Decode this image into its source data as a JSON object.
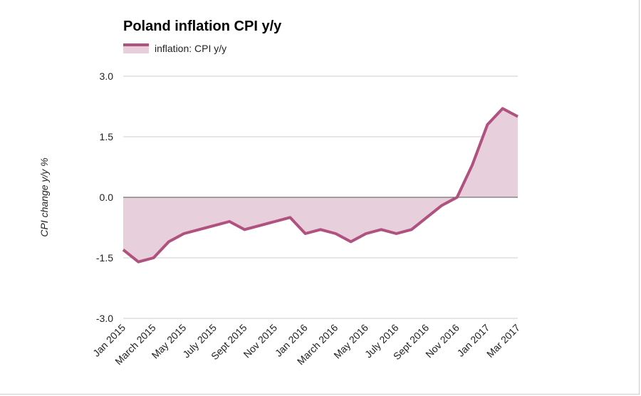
{
  "chart_data": {
    "type": "area",
    "title": "Poland inflation CPI y/y",
    "ylabel": "CPI change y/y %",
    "xlabel": "",
    "ylim": [
      -3.0,
      3.0
    ],
    "yticks": [
      "3.0",
      "1.5",
      "0.0",
      "-1.5",
      "-3.0"
    ],
    "ytick_values": [
      3.0,
      1.5,
      0.0,
      -1.5,
      -3.0
    ],
    "grid": true,
    "legend_position": "top-left",
    "colors": {
      "line": "#b0517f",
      "fill": "#e8cfdc"
    },
    "xtick_labels": [
      "Jan 2015",
      "March 2015",
      "May 2015",
      "July 2015",
      "Sept 2015",
      "Nov 2015",
      "Jan 2016",
      "March 2016",
      "May 2016",
      "July 2016",
      "Sept 2016",
      "Nov 2016",
      "Jan 2017",
      "Mar 2017"
    ],
    "x": [
      "2015-01",
      "2015-02",
      "2015-03",
      "2015-04",
      "2015-05",
      "2015-06",
      "2015-07",
      "2015-08",
      "2015-09",
      "2015-10",
      "2015-11",
      "2015-12",
      "2016-01",
      "2016-02",
      "2016-03",
      "2016-04",
      "2016-05",
      "2016-06",
      "2016-07",
      "2016-08",
      "2016-09",
      "2016-10",
      "2016-11",
      "2016-12",
      "2017-01",
      "2017-02",
      "2017-03"
    ],
    "series": [
      {
        "name": "inflation: CPI y/y",
        "values": [
          -1.3,
          -1.6,
          -1.5,
          -1.1,
          -0.9,
          -0.8,
          -0.7,
          -0.6,
          -0.8,
          -0.7,
          -0.6,
          -0.5,
          -0.9,
          -0.8,
          -0.9,
          -1.1,
          -0.9,
          -0.8,
          -0.9,
          -0.8,
          -0.5,
          -0.2,
          0.0,
          0.8,
          1.8,
          2.2,
          2.0
        ]
      }
    ]
  }
}
